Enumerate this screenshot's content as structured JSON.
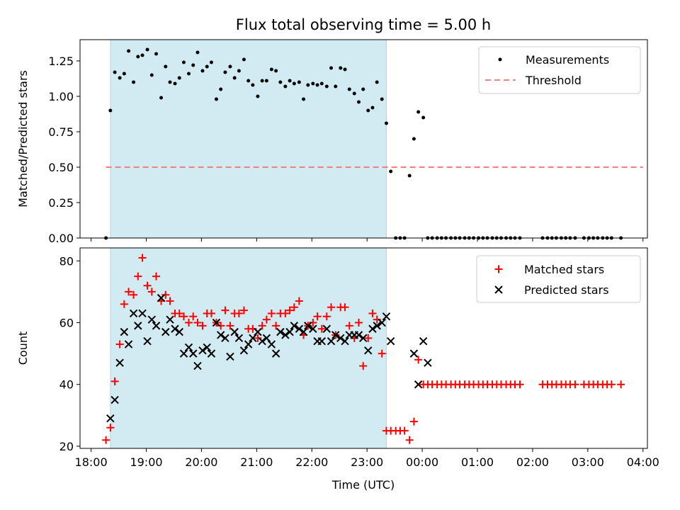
{
  "figure": {
    "title": "Flux total observing time = 5.00 h",
    "xlabel": "Time (UTC)",
    "x_tick_labels": [
      "18:00",
      "19:00",
      "20:00",
      "21:00",
      "22:00",
      "23:00",
      "00:00",
      "01:00",
      "02:00",
      "03:00",
      "04:00"
    ],
    "x_tick_hours": [
      18,
      19,
      20,
      21,
      22,
      23,
      24,
      25,
      26,
      27,
      28
    ],
    "xlim_hours": [
      17.8,
      28.08
    ],
    "shaded_span_hours": [
      18.35,
      23.35
    ],
    "shade_color": "#add8e6"
  },
  "chart_data": [
    {
      "type": "scatter",
      "ylabel": "Matched/Predicted stars",
      "ylim": [
        0,
        1.4
      ],
      "y_ticks": [
        0,
        0.25,
        0.5,
        0.75,
        1.0,
        1.25
      ],
      "y_tick_labels": [
        "0.00",
        "0.25",
        "0.50",
        "0.75",
        "1.00",
        "1.25"
      ],
      "legend": {
        "placement": "top-right",
        "measurements_label": "Measurements",
        "threshold_label": "Threshold"
      },
      "threshold": {
        "value": 0.5,
        "x_range_hours": [
          18.27,
          28.0
        ],
        "color": "#f08080"
      },
      "measurements": {
        "color": "#000000",
        "x_hours": [
          18.27,
          18.35,
          18.43,
          18.52,
          18.6,
          18.68,
          18.77,
          18.85,
          18.93,
          19.02,
          19.1,
          19.18,
          19.27,
          19.35,
          19.43,
          19.52,
          19.6,
          19.68,
          19.77,
          19.85,
          19.93,
          20.02,
          20.1,
          20.18,
          20.27,
          20.35,
          20.43,
          20.52,
          20.6,
          20.68,
          20.77,
          20.85,
          20.93,
          21.02,
          21.1,
          21.18,
          21.27,
          21.35,
          21.43,
          21.52,
          21.6,
          21.68,
          21.77,
          21.85,
          21.93,
          22.02,
          22.1,
          22.18,
          22.27,
          22.35,
          22.43,
          22.52,
          22.6,
          22.68,
          22.77,
          22.85,
          22.93,
          23.02,
          23.1,
          23.18,
          23.27,
          23.35,
          23.43,
          23.52,
          23.6,
          23.68,
          23.77,
          23.85,
          23.93,
          24.02,
          24.1,
          24.18,
          24.27,
          24.35,
          24.43,
          24.52,
          24.6,
          24.68,
          24.77,
          24.85,
          24.93,
          25.02,
          25.1,
          25.18,
          25.27,
          25.35,
          25.43,
          25.52,
          25.6,
          25.68,
          25.77,
          26.18,
          26.27,
          26.35,
          26.43,
          26.52,
          26.6,
          26.68,
          26.77,
          26.93,
          27.02,
          27.1,
          27.18,
          27.27,
          27.35,
          27.43,
          27.6
        ],
        "y": [
          0.0,
          0.9,
          1.17,
          1.13,
          1.16,
          1.32,
          1.1,
          1.28,
          1.29,
          1.33,
          1.15,
          1.3,
          0.99,
          1.21,
          1.1,
          1.09,
          1.13,
          1.24,
          1.16,
          1.22,
          1.31,
          1.18,
          1.21,
          1.24,
          0.98,
          1.05,
          1.17,
          1.21,
          1.13,
          1.18,
          1.26,
          1.11,
          1.08,
          1.0,
          1.11,
          1.11,
          1.19,
          1.18,
          1.1,
          1.07,
          1.11,
          1.09,
          1.1,
          0.98,
          1.08,
          1.09,
          1.08,
          1.09,
          1.07,
          1.2,
          1.07,
          1.2,
          1.19,
          1.05,
          1.02,
          0.96,
          1.05,
          0.9,
          0.92,
          1.1,
          0.98,
          0.81,
          0.47,
          0.0,
          0.0,
          0.0,
          0.44,
          0.7,
          0.89,
          0.85,
          0.0,
          0.0,
          0.0,
          0.0,
          0.0,
          0.0,
          0.0,
          0.0,
          0.0,
          0.0,
          0.0,
          0.0,
          0.0,
          0.0,
          0.0,
          0.0,
          0.0,
          0.0,
          0.0,
          0.0,
          0.0,
          0.0,
          0.0,
          0.0,
          0.0,
          0.0,
          0.0,
          0.0,
          0.0,
          0.0,
          0.0,
          0.0,
          0.0,
          0.0,
          0.0,
          0.0,
          0.0
        ]
      }
    },
    {
      "type": "scatter",
      "ylabel": "Count",
      "ylim": [
        19.3,
        84.2
      ],
      "y_ticks": [
        20,
        40,
        60,
        80
      ],
      "y_tick_labels": [
        "20",
        "40",
        "60",
        "80"
      ],
      "legend": {
        "placement": "top-right"
      },
      "series": [
        {
          "name": "Matched stars",
          "marker": "+",
          "color": "#ff0000",
          "x_hours": [
            18.27,
            18.35,
            18.43,
            18.52,
            18.6,
            18.68,
            18.77,
            18.85,
            18.93,
            19.02,
            19.1,
            19.18,
            19.27,
            19.35,
            19.43,
            19.52,
            19.6,
            19.68,
            19.77,
            19.85,
            19.93,
            20.02,
            20.1,
            20.18,
            20.27,
            20.35,
            20.43,
            20.52,
            20.6,
            20.68,
            20.77,
            20.85,
            20.93,
            21.02,
            21.1,
            21.18,
            21.27,
            21.35,
            21.43,
            21.52,
            21.6,
            21.68,
            21.77,
            21.85,
            21.93,
            22.02,
            22.1,
            22.18,
            22.27,
            22.35,
            22.43,
            22.52,
            22.6,
            22.68,
            22.77,
            22.85,
            22.93,
            23.02,
            23.1,
            23.18,
            23.27,
            23.35,
            23.43,
            23.52,
            23.6,
            23.68,
            23.77,
            23.85,
            23.93,
            24.02,
            24.1,
            24.18,
            24.27,
            24.35,
            24.43,
            24.52,
            24.6,
            24.68,
            24.77,
            24.85,
            24.93,
            25.02,
            25.1,
            25.18,
            25.27,
            25.35,
            25.43,
            25.52,
            25.6,
            25.68,
            25.77,
            26.18,
            26.27,
            26.35,
            26.43,
            26.52,
            26.6,
            26.68,
            26.77,
            26.93,
            27.02,
            27.1,
            27.18,
            27.27,
            27.35,
            27.43,
            27.6
          ],
          "y": [
            22,
            26,
            41,
            53,
            66,
            70,
            69,
            75,
            81,
            72,
            70,
            75,
            67,
            69,
            67,
            63,
            63,
            62,
            60,
            62,
            60,
            59,
            63,
            63,
            60,
            59,
            64,
            59,
            63,
            63,
            64,
            58,
            58,
            55,
            59,
            61,
            63,
            59,
            63,
            63,
            64,
            65,
            67,
            56,
            59,
            60,
            62,
            58,
            62,
            65,
            56,
            65,
            65,
            59,
            55,
            60,
            46,
            55,
            63,
            61,
            50,
            25,
            25,
            25,
            25,
            25,
            22,
            28,
            48,
            40,
            40,
            40,
            40,
            40,
            40,
            40,
            40,
            40,
            40,
            40,
            40,
            40,
            40,
            40,
            40,
            40,
            40,
            40,
            40,
            40,
            40,
            40,
            40,
            40,
            40,
            40,
            40,
            40,
            40,
            40,
            40,
            40,
            40,
            40,
            40,
            40,
            40
          ]
        },
        {
          "name": "Predicted stars",
          "marker": "x",
          "color": "#000000",
          "x_hours": [
            18.35,
            18.43,
            18.52,
            18.6,
            18.68,
            18.77,
            18.85,
            18.93,
            19.02,
            19.1,
            19.18,
            19.27,
            19.35,
            19.43,
            19.52,
            19.6,
            19.68,
            19.77,
            19.85,
            19.93,
            20.02,
            20.1,
            20.18,
            20.27,
            20.35,
            20.43,
            20.52,
            20.6,
            20.68,
            20.77,
            20.85,
            20.93,
            21.02,
            21.1,
            21.18,
            21.27,
            21.35,
            21.43,
            21.52,
            21.6,
            21.68,
            21.77,
            21.85,
            21.93,
            22.02,
            22.1,
            22.18,
            22.27,
            22.35,
            22.43,
            22.52,
            22.6,
            22.68,
            22.77,
            22.85,
            22.93,
            23.02,
            23.1,
            23.18,
            23.27,
            23.35,
            23.43,
            23.85,
            23.93,
            24.02,
            24.1
          ],
          "y": [
            29,
            35,
            47,
            57,
            53,
            63,
            59,
            63,
            54,
            61,
            59,
            68,
            57,
            61,
            58,
            57,
            50,
            52,
            50,
            46,
            51,
            52,
            50,
            60,
            56,
            55,
            49,
            57,
            55,
            51,
            53,
            55,
            57,
            54,
            55,
            53,
            50,
            57,
            56,
            57,
            59,
            58,
            57,
            59,
            58,
            54,
            54,
            58,
            54,
            56,
            55,
            54,
            56,
            56,
            56,
            55,
            51,
            58,
            59,
            60,
            62,
            54,
            50,
            40,
            54,
            47
          ]
        }
      ]
    }
  ]
}
